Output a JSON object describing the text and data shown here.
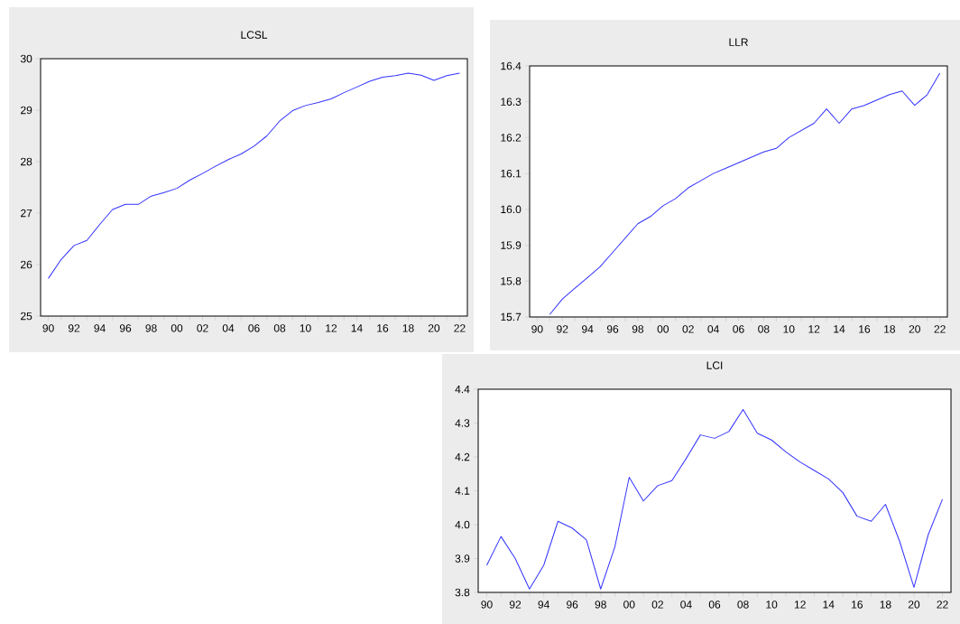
{
  "chart_data": [
    {
      "type": "line",
      "title": "LCSL",
      "x": [
        1990,
        1991,
        1992,
        1993,
        1994,
        1995,
        1996,
        1997,
        1998,
        1999,
        2000,
        2001,
        2002,
        2003,
        2004,
        2005,
        2006,
        2007,
        2008,
        2009,
        2010,
        2011,
        2012,
        2013,
        2014,
        2015,
        2016,
        2017,
        2018,
        2019,
        2020,
        2021,
        2022
      ],
      "series": [
        {
          "color": "#3333ff",
          "values": [
            25.73,
            26.1,
            26.37,
            26.47,
            26.78,
            27.07,
            27.17,
            27.17,
            27.33,
            27.4,
            27.48,
            27.64,
            27.77,
            27.91,
            28.04,
            28.15,
            28.3,
            28.5,
            28.79,
            28.99,
            29.09,
            29.15,
            29.22,
            29.34,
            29.45,
            29.56,
            29.64,
            29.67,
            29.72,
            29.68,
            29.58,
            29.67,
            29.72
          ]
        }
      ],
      "xlim": [
        1989.4,
        2022.6
      ],
      "ylim": [
        25,
        30
      ],
      "xticks": [
        {
          "value": 1990,
          "label": "90"
        },
        {
          "value": 1991,
          "label": null
        },
        {
          "value": 1992,
          "label": "92"
        },
        {
          "value": 1993,
          "label": null
        },
        {
          "value": 1994,
          "label": "94"
        },
        {
          "value": 1995,
          "label": null
        },
        {
          "value": 1996,
          "label": "96"
        },
        {
          "value": 1997,
          "label": null
        },
        {
          "value": 1998,
          "label": "98"
        },
        {
          "value": 1999,
          "label": null
        },
        {
          "value": 2000,
          "label": "00"
        },
        {
          "value": 2001,
          "label": null
        },
        {
          "value": 2002,
          "label": "02"
        },
        {
          "value": 2003,
          "label": null
        },
        {
          "value": 2004,
          "label": "04"
        },
        {
          "value": 2005,
          "label": null
        },
        {
          "value": 2006,
          "label": "06"
        },
        {
          "value": 2007,
          "label": null
        },
        {
          "value": 2008,
          "label": "08"
        },
        {
          "value": 2009,
          "label": null
        },
        {
          "value": 2010,
          "label": "10"
        },
        {
          "value": 2011,
          "label": null
        },
        {
          "value": 2012,
          "label": "12"
        },
        {
          "value": 2013,
          "label": null
        },
        {
          "value": 2014,
          "label": "14"
        },
        {
          "value": 2015,
          "label": null
        },
        {
          "value": 2016,
          "label": "16"
        },
        {
          "value": 2017,
          "label": null
        },
        {
          "value": 2018,
          "label": "18"
        },
        {
          "value": 2019,
          "label": null
        },
        {
          "value": 2020,
          "label": "20"
        },
        {
          "value": 2021,
          "label": null
        },
        {
          "value": 2022,
          "label": "22"
        }
      ],
      "yticks": [
        25,
        26,
        27,
        28,
        29,
        30
      ]
    },
    {
      "type": "line",
      "title": "LLR",
      "series": [
        {
          "color": "#3333ff",
          "x": [
            1991,
            1992,
            1993,
            1994,
            1995,
            1996,
            1997,
            1998,
            1999,
            2000,
            2001,
            2002,
            2003,
            2004,
            2005,
            2006,
            2007,
            2008,
            2009,
            2010,
            2011,
            2012,
            2013,
            2014,
            2015,
            2016,
            2017,
            2018,
            2019,
            2020,
            2021,
            2022
          ],
          "values": [
            15.707,
            15.75,
            15.78,
            15.81,
            15.84,
            15.88,
            15.92,
            15.96,
            15.98,
            16.01,
            16.03,
            16.06,
            16.08,
            16.1,
            16.115,
            16.13,
            16.145,
            16.16,
            16.17,
            16.2,
            16.22,
            16.24,
            16.28,
            16.24,
            16.28,
            16.29,
            16.305,
            16.32,
            16.33,
            16.29,
            16.32,
            16.38
          ]
        }
      ],
      "xlim": [
        1989.4,
        2022.6
      ],
      "ylim": [
        15.7,
        16.4
      ],
      "xticks": [
        {
          "value": 1990,
          "label": "90"
        },
        {
          "value": 1991,
          "label": null
        },
        {
          "value": 1992,
          "label": "92"
        },
        {
          "value": 1993,
          "label": null
        },
        {
          "value": 1994,
          "label": "94"
        },
        {
          "value": 1995,
          "label": null
        },
        {
          "value": 1996,
          "label": "96"
        },
        {
          "value": 1997,
          "label": null
        },
        {
          "value": 1998,
          "label": "98"
        },
        {
          "value": 1999,
          "label": null
        },
        {
          "value": 2000,
          "label": "00"
        },
        {
          "value": 2001,
          "label": null
        },
        {
          "value": 2002,
          "label": "02"
        },
        {
          "value": 2003,
          "label": null
        },
        {
          "value": 2004,
          "label": "04"
        },
        {
          "value": 2005,
          "label": null
        },
        {
          "value": 2006,
          "label": "06"
        },
        {
          "value": 2007,
          "label": null
        },
        {
          "value": 2008,
          "label": "08"
        },
        {
          "value": 2009,
          "label": null
        },
        {
          "value": 2010,
          "label": "10"
        },
        {
          "value": 2011,
          "label": null
        },
        {
          "value": 2012,
          "label": "12"
        },
        {
          "value": 2013,
          "label": null
        },
        {
          "value": 2014,
          "label": "14"
        },
        {
          "value": 2015,
          "label": null
        },
        {
          "value": 2016,
          "label": "16"
        },
        {
          "value": 2017,
          "label": null
        },
        {
          "value": 2018,
          "label": "18"
        },
        {
          "value": 2019,
          "label": null
        },
        {
          "value": 2020,
          "label": "20"
        },
        {
          "value": 2021,
          "label": null
        },
        {
          "value": 2022,
          "label": "22"
        }
      ],
      "yticks": [
        15.7,
        15.8,
        15.9,
        {
          "value": 16,
          "label": "16.0"
        },
        16.1,
        16.2,
        16.3,
        16.4
      ]
    },
    {
      "type": "line",
      "title": "LCI",
      "x": [
        1990,
        1991,
        1992,
        1993,
        1994,
        1995,
        1996,
        1997,
        1998,
        1999,
        2000,
        2001,
        2002,
        2003,
        2004,
        2005,
        2006,
        2007,
        2008,
        2009,
        2010,
        2011,
        2012,
        2013,
        2014,
        2015,
        2016,
        2017,
        2018,
        2019,
        2020,
        2021,
        2022
      ],
      "series": [
        {
          "color": "#3333ff",
          "values": [
            3.88,
            3.965,
            3.9,
            3.81,
            3.88,
            4.01,
            3.99,
            3.955,
            3.81,
            3.935,
            4.14,
            4.07,
            4.115,
            4.13,
            4.195,
            4.265,
            4.255,
            4.275,
            4.34,
            4.27,
            4.25,
            4.215,
            4.185,
            4.16,
            4.135,
            4.095,
            4.025,
            4.01,
            4.06,
            3.95,
            3.815,
            3.97,
            4.075
          ]
        }
      ],
      "xlim": [
        1989.4,
        2022.6
      ],
      "ylim": [
        3.8,
        4.4
      ],
      "xticks": [
        {
          "value": 1990,
          "label": "90"
        },
        {
          "value": 1991,
          "label": null
        },
        {
          "value": 1992,
          "label": "92"
        },
        {
          "value": 1993,
          "label": null
        },
        {
          "value": 1994,
          "label": "94"
        },
        {
          "value": 1995,
          "label": null
        },
        {
          "value": 1996,
          "label": "96"
        },
        {
          "value": 1997,
          "label": null
        },
        {
          "value": 1998,
          "label": "98"
        },
        {
          "value": 1999,
          "label": null
        },
        {
          "value": 2000,
          "label": "00"
        },
        {
          "value": 2001,
          "label": null
        },
        {
          "value": 2002,
          "label": "02"
        },
        {
          "value": 2003,
          "label": null
        },
        {
          "value": 2004,
          "label": "04"
        },
        {
          "value": 2005,
          "label": null
        },
        {
          "value": 2006,
          "label": "06"
        },
        {
          "value": 2007,
          "label": null
        },
        {
          "value": 2008,
          "label": "08"
        },
        {
          "value": 2009,
          "label": null
        },
        {
          "value": 2010,
          "label": "10"
        },
        {
          "value": 2011,
          "label": null
        },
        {
          "value": 2012,
          "label": "12"
        },
        {
          "value": 2013,
          "label": null
        },
        {
          "value": 2014,
          "label": "14"
        },
        {
          "value": 2015,
          "label": null
        },
        {
          "value": 2016,
          "label": "16"
        },
        {
          "value": 2017,
          "label": null
        },
        {
          "value": 2018,
          "label": "18"
        },
        {
          "value": 2019,
          "label": null
        },
        {
          "value": 2020,
          "label": "20"
        },
        {
          "value": 2021,
          "label": null
        },
        {
          "value": 2022,
          "label": "22"
        }
      ],
      "yticks": [
        3.8,
        3.9,
        {
          "value": 4,
          "label": "4.0"
        },
        4.1,
        4.2,
        4.3,
        4.4
      ]
    }
  ]
}
